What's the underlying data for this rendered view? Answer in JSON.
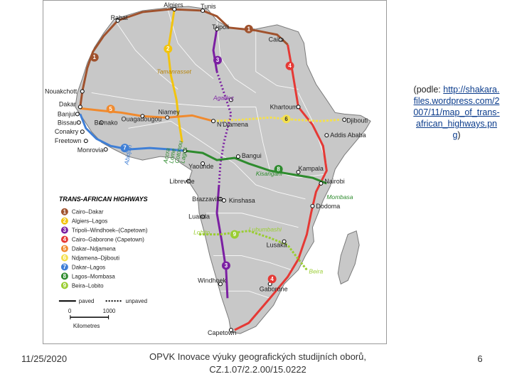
{
  "map": {
    "legend_title": "TRANS-AFRICAN HIGHWAYS",
    "highways": [
      {
        "num": "1",
        "name": "Cairo–Dakar",
        "color": "#a0522d"
      },
      {
        "num": "2",
        "name": "Algiers–Lagos",
        "color": "#f2c40f"
      },
      {
        "num": "3",
        "name": "Tripoli–Windhoek–(Capetown)",
        "color": "#7b1fa2"
      },
      {
        "num": "4",
        "name": "Cairo–Gaborone (Capetown)",
        "color": "#e53935"
      },
      {
        "num": "5",
        "name": "Dakar–Ndjamena",
        "color": "#f08a2e"
      },
      {
        "num": "6",
        "name": "Ndjamena–Djibouti",
        "color": "#f4e04d"
      },
      {
        "num": "7",
        "name": "Dakar–Lagos",
        "color": "#3f7fd6"
      },
      {
        "num": "8",
        "name": "Lagos–Mombasa",
        "color": "#2e8b2e"
      },
      {
        "num": "9",
        "name": "Beira–Lobito",
        "color": "#9acd32"
      }
    ],
    "paved_label": "paved",
    "unpaved_label": "unpaved",
    "scale_start": "0",
    "scale_end": "1000",
    "scale_unit": "Kilometres",
    "cities": {
      "algiers": "Algiers",
      "tunis": "Tunis",
      "rabat": "Rabat",
      "tripoli": "Tripoli",
      "cairo": "Cairo",
      "nouakchott": "Nouakchott",
      "dakar": "Dakar",
      "banjul": "Banjul",
      "bissau": "Bissau",
      "conakry": "Conakry",
      "freetown": "Freetown",
      "monrovia": "Monrovia",
      "bamako": "Bamako",
      "ouagadougou": "Ouagadougou",
      "niamey": "Niamey",
      "ndjamena": "N'Djamena",
      "khartoum": "Khartoum",
      "djibouti": "Djibouti",
      "addis": "Addis Ababa",
      "lagos": "Lagos",
      "bangui": "Bangui",
      "yaounde": "Yaounde",
      "libreville": "Libreville",
      "kampala": "Kampala",
      "nairobi": "Nairobi",
      "mombasa": "Mombasa",
      "brazzaville": "Brazzaville",
      "kinshasa": "Kinshasa",
      "luanda": "Luanda",
      "dodoma": "Dodoma",
      "lubumbashi": "Lubumbashi",
      "lusaka": "Lusaka",
      "lobito": "Lobito",
      "beira": "Beira",
      "windhoek": "Windhoek",
      "gaborone": "Gaborone",
      "capetown": "Capetown",
      "tamanrasset": "Tamanrasset",
      "agadez": "Agadez",
      "kisangani": "Kisangani",
      "abidjan": "Abidjan",
      "accra": "Accra",
      "cotonou": "Cotonou",
      "lome": "Lome"
    }
  },
  "source": {
    "prefix": "(podle:",
    "link": "http://shakara.files.wordpress.com/2007/11/map_of_trans-african_highways.png",
    "suffix": ")"
  },
  "footer": {
    "date": "11/25/2020",
    "title_line1": "OPVK Inovace výuky geografických studijních oborů,",
    "title_line2": "CZ.1.07/2.2.00/15.0222",
    "page": "6"
  }
}
